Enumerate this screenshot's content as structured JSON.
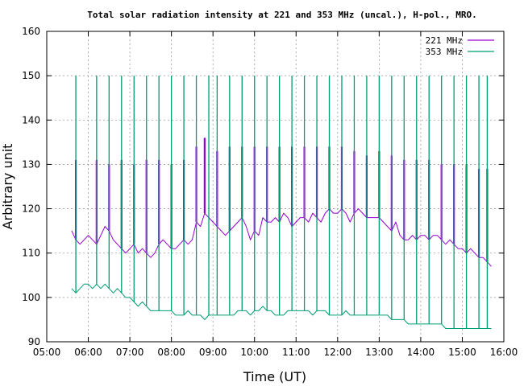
{
  "chart_data": {
    "type": "line",
    "title": "Total solar radiation intensity at 221 and 353 MHz (uncal.), H-pol., MRO.",
    "xlabel": "Time (UT)",
    "ylabel": "Arbitrary unit",
    "xlim": [
      "05:00",
      "16:00"
    ],
    "ylim": [
      90,
      160
    ],
    "x_ticks": [
      "05:00",
      "06:00",
      "07:00",
      "08:00",
      "09:00",
      "10:00",
      "11:00",
      "12:00",
      "13:00",
      "14:00",
      "15:00",
      "16:00"
    ],
    "y_ticks": [
      "90",
      "100",
      "110",
      "120",
      "130",
      "140",
      "150",
      "160"
    ],
    "grid": true,
    "legend_position": "top-right",
    "series": [
      {
        "name": "221 MHz",
        "color": "#9400d3",
        "baseline": [
          [
            "05:36",
            115
          ],
          [
            "05:42",
            113
          ],
          [
            "05:48",
            112
          ],
          [
            "05:54",
            113
          ],
          [
            "06:00",
            114
          ],
          [
            "06:06",
            113
          ],
          [
            "06:12",
            112
          ],
          [
            "06:18",
            114
          ],
          [
            "06:24",
            116
          ],
          [
            "06:30",
            115
          ],
          [
            "06:36",
            113
          ],
          [
            "06:42",
            112
          ],
          [
            "06:48",
            111
          ],
          [
            "06:54",
            110
          ],
          [
            "07:00",
            111
          ],
          [
            "07:06",
            112
          ],
          [
            "07:12",
            110
          ],
          [
            "07:18",
            111
          ],
          [
            "07:24",
            110
          ],
          [
            "07:30",
            109
          ],
          [
            "07:36",
            110
          ],
          [
            "07:42",
            112
          ],
          [
            "07:48",
            113
          ],
          [
            "07:54",
            112
          ],
          [
            "08:00",
            111
          ],
          [
            "08:06",
            111
          ],
          [
            "08:12",
            112
          ],
          [
            "08:18",
            113
          ],
          [
            "08:24",
            112
          ],
          [
            "08:30",
            113
          ],
          [
            "08:36",
            117
          ],
          [
            "08:42",
            116
          ],
          [
            "08:48",
            119
          ],
          [
            "08:54",
            118
          ],
          [
            "09:00",
            117
          ],
          [
            "09:06",
            116
          ],
          [
            "09:12",
            115
          ],
          [
            "09:18",
            114
          ],
          [
            "09:24",
            115
          ],
          [
            "09:30",
            116
          ],
          [
            "09:36",
            117
          ],
          [
            "09:42",
            118
          ],
          [
            "09:48",
            116
          ],
          [
            "09:54",
            113
          ],
          [
            "10:00",
            115
          ],
          [
            "10:06",
            114
          ],
          [
            "10:12",
            118
          ],
          [
            "10:18",
            117
          ],
          [
            "10:24",
            117
          ],
          [
            "10:30",
            118
          ],
          [
            "10:36",
            117
          ],
          [
            "10:42",
            119
          ],
          [
            "10:48",
            118
          ],
          [
            "10:54",
            116
          ],
          [
            "11:00",
            117
          ],
          [
            "11:06",
            118
          ],
          [
            "11:12",
            118
          ],
          [
            "11:18",
            117
          ],
          [
            "11:24",
            119
          ],
          [
            "11:30",
            118
          ],
          [
            "11:36",
            117
          ],
          [
            "11:42",
            119
          ],
          [
            "11:48",
            120
          ],
          [
            "11:54",
            119
          ],
          [
            "12:00",
            119
          ],
          [
            "12:06",
            120
          ],
          [
            "12:12",
            119
          ],
          [
            "12:18",
            117
          ],
          [
            "12:24",
            119
          ],
          [
            "12:30",
            120
          ],
          [
            "12:36",
            119
          ],
          [
            "12:42",
            118
          ],
          [
            "12:48",
            118
          ],
          [
            "12:54",
            118
          ],
          [
            "13:00",
            118
          ],
          [
            "13:06",
            117
          ],
          [
            "13:12",
            116
          ],
          [
            "13:18",
            115
          ],
          [
            "13:24",
            117
          ],
          [
            "13:30",
            114
          ],
          [
            "13:36",
            113
          ],
          [
            "13:42",
            113
          ],
          [
            "13:48",
            114
          ],
          [
            "13:54",
            113
          ],
          [
            "14:00",
            114
          ],
          [
            "14:06",
            114
          ],
          [
            "14:12",
            113
          ],
          [
            "14:18",
            114
          ],
          [
            "14:24",
            114
          ],
          [
            "14:30",
            113
          ],
          [
            "14:36",
            112
          ],
          [
            "14:42",
            113
          ],
          [
            "14:48",
            112
          ],
          [
            "14:54",
            111
          ],
          [
            "15:00",
            111
          ],
          [
            "15:06",
            110
          ],
          [
            "15:12",
            111
          ],
          [
            "15:18",
            110
          ],
          [
            "15:24",
            109
          ],
          [
            "15:30",
            109
          ],
          [
            "15:36",
            108
          ],
          [
            "15:42",
            107
          ]
        ],
        "spikes": [
          [
            "05:42",
            131
          ],
          [
            "06:12",
            131
          ],
          [
            "06:30",
            130
          ],
          [
            "06:48",
            131
          ],
          [
            "07:06",
            130
          ],
          [
            "07:24",
            131
          ],
          [
            "07:42",
            131
          ],
          [
            "08:00",
            130
          ],
          [
            "08:18",
            131
          ],
          [
            "08:36",
            134
          ],
          [
            "08:48",
            136
          ],
          [
            "09:06",
            133
          ],
          [
            "09:24",
            134
          ],
          [
            "09:42",
            134
          ],
          [
            "10:00",
            134
          ],
          [
            "10:18",
            134
          ],
          [
            "10:36",
            134
          ],
          [
            "10:54",
            134
          ],
          [
            "11:12",
            134
          ],
          [
            "11:30",
            134
          ],
          [
            "11:48",
            134
          ],
          [
            "12:06",
            134
          ],
          [
            "12:24",
            133
          ],
          [
            "12:42",
            132
          ],
          [
            "13:00",
            133
          ],
          [
            "13:18",
            132
          ],
          [
            "13:36",
            131
          ],
          [
            "13:54",
            131
          ],
          [
            "14:12",
            131
          ],
          [
            "14:30",
            130
          ],
          [
            "14:48",
            130
          ],
          [
            "15:06",
            130
          ],
          [
            "15:24",
            129
          ],
          [
            "15:36",
            129
          ]
        ]
      },
      {
        "name": "353 MHz",
        "color": "#009e73",
        "baseline": [
          [
            "05:36",
            102
          ],
          [
            "05:42",
            101
          ],
          [
            "05:48",
            102
          ],
          [
            "05:54",
            103
          ],
          [
            "06:00",
            103
          ],
          [
            "06:06",
            102
          ],
          [
            "06:12",
            103
          ],
          [
            "06:18",
            102
          ],
          [
            "06:24",
            103
          ],
          [
            "06:30",
            102
          ],
          [
            "06:36",
            101
          ],
          [
            "06:42",
            102
          ],
          [
            "06:48",
            101
          ],
          [
            "06:54",
            100
          ],
          [
            "07:00",
            100
          ],
          [
            "07:06",
            99
          ],
          [
            "07:12",
            98
          ],
          [
            "07:18",
            99
          ],
          [
            "07:24",
            98
          ],
          [
            "07:30",
            97
          ],
          [
            "07:36",
            97
          ],
          [
            "07:42",
            97
          ],
          [
            "07:48",
            97
          ],
          [
            "07:54",
            97
          ],
          [
            "08:00",
            97
          ],
          [
            "08:06",
            96
          ],
          [
            "08:12",
            96
          ],
          [
            "08:18",
            96
          ],
          [
            "08:24",
            97
          ],
          [
            "08:30",
            96
          ],
          [
            "08:36",
            96
          ],
          [
            "08:42",
            96
          ],
          [
            "08:48",
            95
          ],
          [
            "08:54",
            96
          ],
          [
            "09:00",
            96
          ],
          [
            "09:06",
            96
          ],
          [
            "09:12",
            96
          ],
          [
            "09:18",
            96
          ],
          [
            "09:24",
            96
          ],
          [
            "09:30",
            96
          ],
          [
            "09:36",
            97
          ],
          [
            "09:42",
            97
          ],
          [
            "09:48",
            97
          ],
          [
            "09:54",
            96
          ],
          [
            "10:00",
            97
          ],
          [
            "10:06",
            97
          ],
          [
            "10:12",
            98
          ],
          [
            "10:18",
            97
          ],
          [
            "10:24",
            97
          ],
          [
            "10:30",
            96
          ],
          [
            "10:36",
            96
          ],
          [
            "10:42",
            96
          ],
          [
            "10:48",
            97
          ],
          [
            "10:54",
            97
          ],
          [
            "11:00",
            97
          ],
          [
            "11:06",
            97
          ],
          [
            "11:12",
            97
          ],
          [
            "11:18",
            97
          ],
          [
            "11:24",
            96
          ],
          [
            "11:30",
            97
          ],
          [
            "11:36",
            97
          ],
          [
            "11:42",
            97
          ],
          [
            "11:48",
            96
          ],
          [
            "11:54",
            96
          ],
          [
            "12:00",
            96
          ],
          [
            "12:06",
            96
          ],
          [
            "12:12",
            97
          ],
          [
            "12:18",
            96
          ],
          [
            "12:24",
            96
          ],
          [
            "12:30",
            96
          ],
          [
            "12:36",
            96
          ],
          [
            "12:42",
            96
          ],
          [
            "12:48",
            96
          ],
          [
            "12:54",
            96
          ],
          [
            "13:00",
            96
          ],
          [
            "13:06",
            96
          ],
          [
            "13:12",
            96
          ],
          [
            "13:18",
            95
          ],
          [
            "13:24",
            95
          ],
          [
            "13:30",
            95
          ],
          [
            "13:36",
            95
          ],
          [
            "13:42",
            94
          ],
          [
            "13:48",
            94
          ],
          [
            "13:54",
            94
          ],
          [
            "14:00",
            94
          ],
          [
            "14:06",
            94
          ],
          [
            "14:12",
            94
          ],
          [
            "14:18",
            94
          ],
          [
            "14:24",
            94
          ],
          [
            "14:30",
            94
          ],
          [
            "14:36",
            93
          ],
          [
            "14:42",
            93
          ],
          [
            "14:48",
            93
          ],
          [
            "14:54",
            93
          ],
          [
            "15:00",
            93
          ],
          [
            "15:06",
            93
          ],
          [
            "15:12",
            93
          ],
          [
            "15:18",
            93
          ],
          [
            "15:24",
            93
          ],
          [
            "15:30",
            93
          ],
          [
            "15:36",
            93
          ],
          [
            "15:42",
            93
          ]
        ],
        "spikes": [
          [
            "05:42",
            150
          ],
          [
            "06:12",
            150
          ],
          [
            "06:30",
            150
          ],
          [
            "06:48",
            150
          ],
          [
            "07:06",
            150
          ],
          [
            "07:24",
            150
          ],
          [
            "07:42",
            150
          ],
          [
            "08:00",
            150
          ],
          [
            "08:18",
            150
          ],
          [
            "08:36",
            150
          ],
          [
            "08:54",
            150
          ],
          [
            "09:06",
            150
          ],
          [
            "09:24",
            150
          ],
          [
            "09:42",
            150
          ],
          [
            "10:00",
            150
          ],
          [
            "10:18",
            150
          ],
          [
            "10:36",
            150
          ],
          [
            "10:54",
            150
          ],
          [
            "11:12",
            150
          ],
          [
            "11:30",
            150
          ],
          [
            "11:48",
            150
          ],
          [
            "12:06",
            150
          ],
          [
            "12:24",
            150
          ],
          [
            "12:42",
            150
          ],
          [
            "13:00",
            150
          ],
          [
            "13:18",
            150
          ],
          [
            "13:36",
            150
          ],
          [
            "13:54",
            150
          ],
          [
            "14:12",
            150
          ],
          [
            "14:30",
            150
          ],
          [
            "14:48",
            150
          ],
          [
            "15:06",
            150
          ],
          [
            "15:24",
            150
          ],
          [
            "15:36",
            150
          ]
        ]
      }
    ]
  }
}
